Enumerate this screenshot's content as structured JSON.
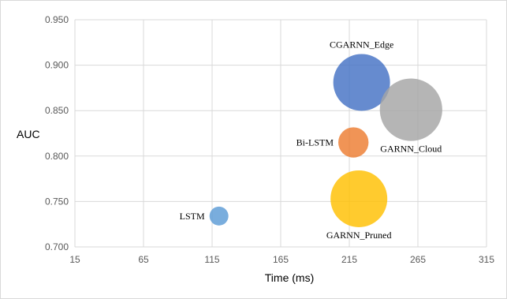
{
  "chart_data": {
    "type": "scatter",
    "variant": "bubble",
    "title": "",
    "xlabel": "Time (ms)",
    "ylabel": "AUC",
    "xlim": [
      15,
      315
    ],
    "ylim": [
      0.7,
      0.95
    ],
    "xticks": [
      15,
      65,
      115,
      165,
      215,
      265,
      315
    ],
    "xtick_labels": [
      "15",
      "65",
      "115",
      "165",
      "215",
      "265",
      "315"
    ],
    "yticks": [
      0.7,
      0.75,
      0.8,
      0.85,
      0.9,
      0.95
    ],
    "ytick_labels": [
      "0.700",
      "0.750",
      "0.800",
      "0.850",
      "0.900",
      "0.950"
    ],
    "grid": true,
    "legend": "none",
    "points": [
      {
        "label": "LSTM",
        "x": 120,
        "y": 0.734,
        "size": 1.0,
        "color": "#5b9bd5",
        "label_position": "left"
      },
      {
        "label": "Bi-LSTM",
        "x": 218,
        "y": 0.815,
        "size": 1.6,
        "color": "#ed7d31",
        "label_position": "left"
      },
      {
        "label": "GARNN_Pruned",
        "x": 222,
        "y": 0.753,
        "size": 3.0,
        "color": "#ffc000",
        "label_position": "bottom"
      },
      {
        "label": "CGARNN_Edge",
        "x": 224,
        "y": 0.881,
        "size": 3.0,
        "color": "#4472c4",
        "label_position": "top"
      },
      {
        "label": "GARNN_Cloud",
        "x": 260,
        "y": 0.851,
        "size": 3.3,
        "color": "#a5a5a5",
        "label_position": "bottom"
      }
    ]
  }
}
